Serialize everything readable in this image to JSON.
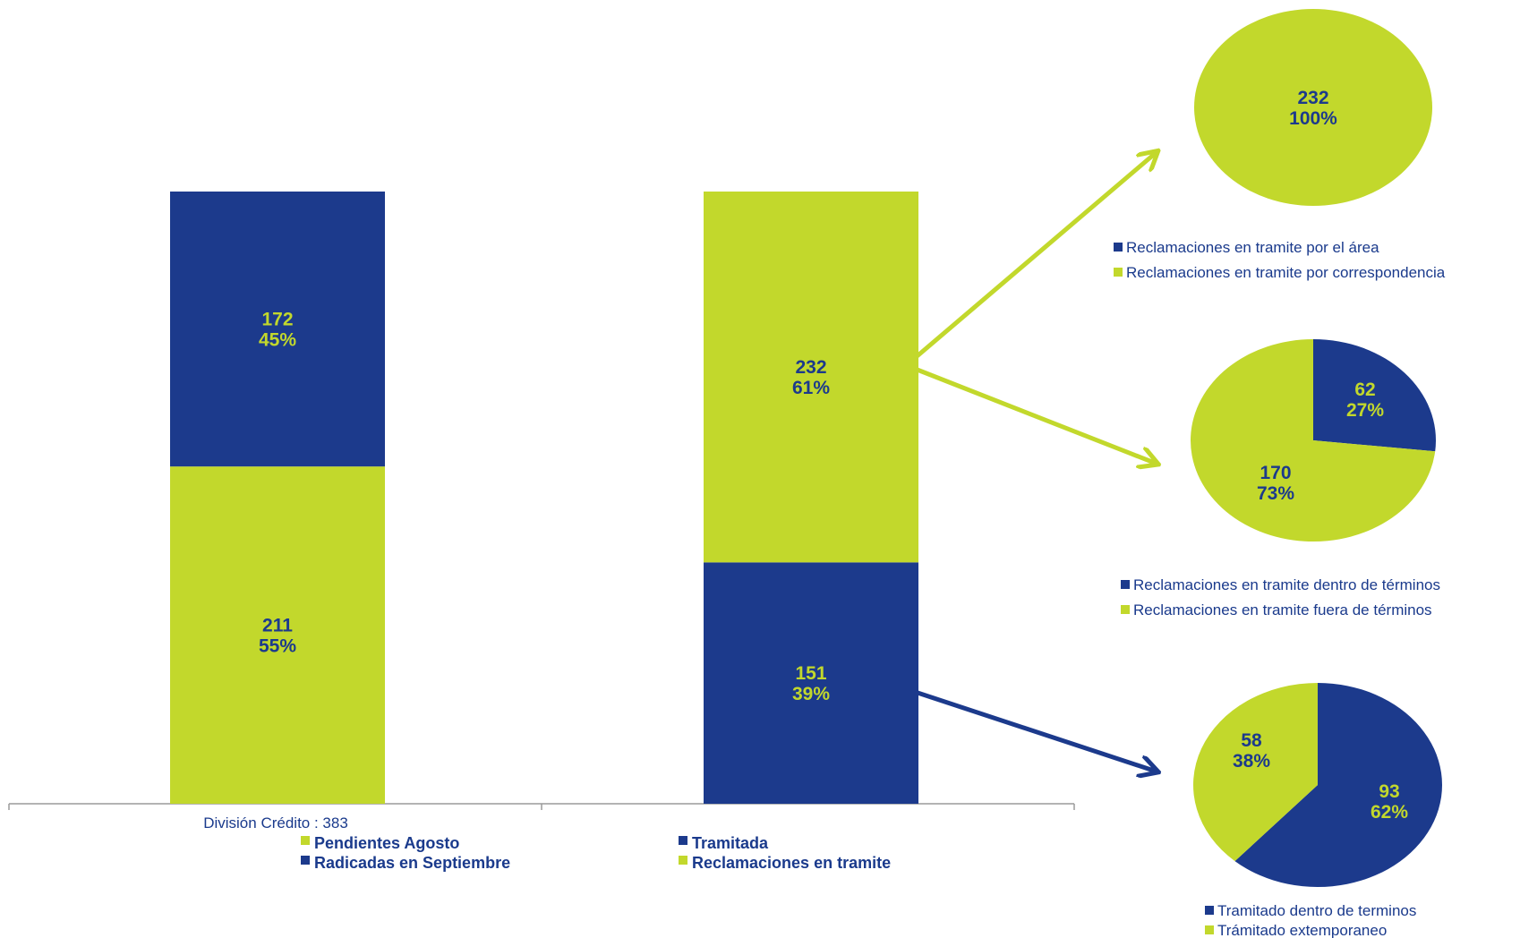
{
  "chart_data": [
    {
      "type": "bar",
      "stacked": true,
      "categories": [
        "División Crédito : 383",
        ""
      ],
      "series": [
        {
          "name": "Pendientes Agosto",
          "values": [
            211,
            null
          ],
          "labels": [
            "55%",
            null
          ],
          "color": "#c2d82c"
        },
        {
          "name": "Radicadas en Septiembre",
          "values": [
            172,
            null
          ],
          "labels": [
            "45%",
            null
          ],
          "color": "#1c3a8c"
        },
        {
          "name": "Tramitada",
          "values": [
            null,
            151
          ],
          "labels": [
            null,
            "39%"
          ],
          "color": "#1c3a8c"
        },
        {
          "name": "Reclamaciones en tramite",
          "values": [
            null,
            232
          ],
          "labels": [
            null,
            "61%"
          ],
          "color": "#c2d82c"
        }
      ],
      "ylim": [
        0,
        383
      ],
      "grid": false,
      "legend": "bottom"
    },
    {
      "type": "pie",
      "slices": [
        {
          "name": "Reclamaciones en tramite por el área",
          "value": 0,
          "label": "",
          "color": "#1c3a8c"
        },
        {
          "name": "Reclamaciones en tramite por correspondencia",
          "value": 232,
          "label": "100%",
          "color": "#c2d82c"
        }
      ],
      "legend": "bottom"
    },
    {
      "type": "pie",
      "slices": [
        {
          "name": "Reclamaciones en tramite dentro de términos",
          "value": 62,
          "label": "27%",
          "color": "#1c3a8c"
        },
        {
          "name": "Reclamaciones en tramite fuera de términos",
          "value": 170,
          "label": "73%",
          "color": "#c2d82c"
        }
      ],
      "legend": "bottom"
    },
    {
      "type": "pie",
      "slices": [
        {
          "name": "Tramitado dentro de terminos",
          "value": 93,
          "label": "62%",
          "color": "#1c3a8c"
        },
        {
          "name": "Trámitado extemporaneo",
          "value": 58,
          "label": "38%",
          "color": "#c2d82c"
        }
      ],
      "legend": "bottom"
    }
  ],
  "colors": {
    "blue": "#1c3a8c",
    "green": "#c2d82c",
    "axis": "#9a9a9a"
  }
}
